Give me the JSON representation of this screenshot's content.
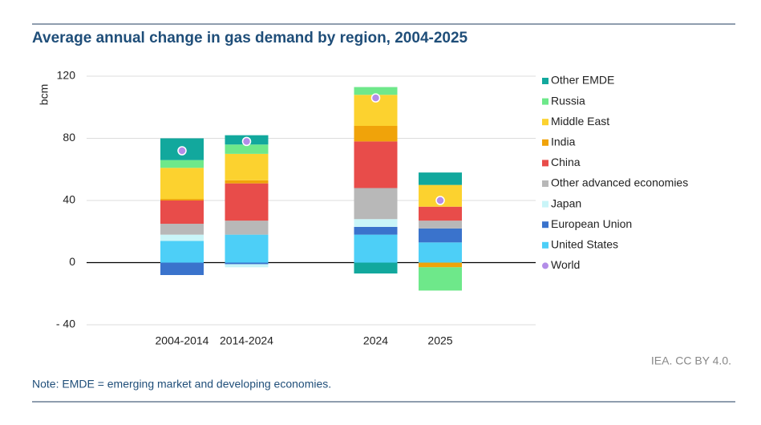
{
  "chart_data": {
    "type": "stacked-bar",
    "title": "Average annual change in gas demand by region, 2004-2025",
    "y_label": "bcm",
    "source": "IEA. CC BY 4.0.",
    "note": "Note: EMDE = emerging market and developing economies.",
    "categories": [
      "2004-2014",
      "2014-2024",
      null,
      "2024",
      "2025"
    ],
    "ylim": [
      -40,
      120
    ],
    "yticks": [
      {
        "value": -40,
        "label": "- 40"
      },
      0,
      40,
      80,
      120
    ],
    "grid": true,
    "legend": "right",
    "series": [
      {
        "name": "United States",
        "color": "#4dcff7",
        "values": [
          14,
          18,
          null,
          18,
          13
        ]
      },
      {
        "name": "European Union",
        "color": "#3a73cc",
        "values": [
          -8,
          -1,
          null,
          5,
          9
        ]
      },
      {
        "name": "Japan",
        "color": "#c9f5f8",
        "values": [
          4,
          -2,
          null,
          5,
          0
        ]
      },
      {
        "name": "Other advanced economies",
        "color": "#b8b8b8",
        "values": [
          7,
          9,
          null,
          20,
          5
        ]
      },
      {
        "name": "China",
        "color": "#e84c4a",
        "values": [
          15,
          24,
          null,
          30,
          9
        ]
      },
      {
        "name": "India",
        "color": "#f0a30a",
        "values": [
          1,
          2,
          null,
          10,
          -3
        ]
      },
      {
        "name": "Middle East",
        "color": "#fcd22f",
        "values": [
          20,
          17,
          null,
          20,
          14
        ]
      },
      {
        "name": "Russia",
        "color": "#6ee88a",
        "values": [
          5,
          6,
          null,
          5,
          -15
        ]
      },
      {
        "name": "Other EMDE",
        "color": "#12a89d",
        "values": [
          14,
          6,
          null,
          -7,
          8
        ]
      }
    ],
    "world": {
      "name": "World",
      "color": "#b38de8",
      "values": [
        72,
        78,
        null,
        106,
        40
      ]
    }
  }
}
